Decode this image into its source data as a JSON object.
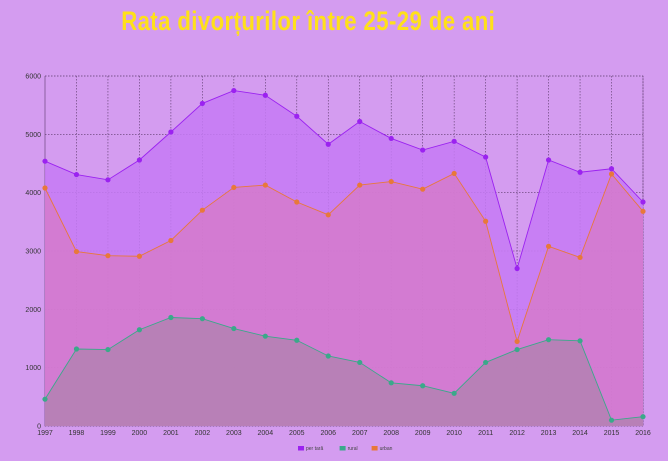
{
  "chart_data": {
    "type": "area",
    "title": "Rata divorțurilor între 25-29  de ani",
    "xlabel": "",
    "ylabel": "",
    "ylim": [
      0,
      6000
    ],
    "yticks": [
      0,
      1000,
      2000,
      3000,
      4000,
      5000,
      6000
    ],
    "grid": true,
    "legend_position": "bottom",
    "categories": [
      "1997",
      "1998",
      "1999",
      "2000",
      "2001",
      "2002",
      "2003",
      "2004",
      "2005",
      "2006",
      "2007",
      "2008",
      "2009",
      "2010",
      "2011",
      "2012",
      "2013",
      "2014",
      "2015",
      "2016"
    ],
    "series": [
      {
        "name": "per tară",
        "color": "#9b22f0",
        "fill": "#c57af4",
        "values": [
          4540,
          4310,
          4220,
          4560,
          5040,
          5530,
          5750,
          5670,
          5310,
          4830,
          5220,
          4930,
          4730,
          4880,
          4610,
          2700,
          4560,
          4350,
          4410,
          3840
        ]
      },
      {
        "name": "urban",
        "color": "#e8783a",
        "fill": "#d67ac8",
        "values": [
          4080,
          2990,
          2920,
          2910,
          3180,
          3700,
          4090,
          4130,
          3840,
          3620,
          4130,
          4190,
          4060,
          4330,
          3510,
          1450,
          3080,
          2890,
          4320,
          3680
        ]
      },
      {
        "name": "rural",
        "color": "#3aa98a",
        "fill": "#b182b0",
        "values": [
          460,
          1320,
          1310,
          1650,
          1860,
          1840,
          1670,
          1540,
          1470,
          1200,
          1090,
          740,
          690,
          560,
          1090,
          1310,
          1480,
          1460,
          100,
          160
        ]
      }
    ],
    "legend_order": [
      "per tară",
      "rural",
      "urban"
    ]
  }
}
